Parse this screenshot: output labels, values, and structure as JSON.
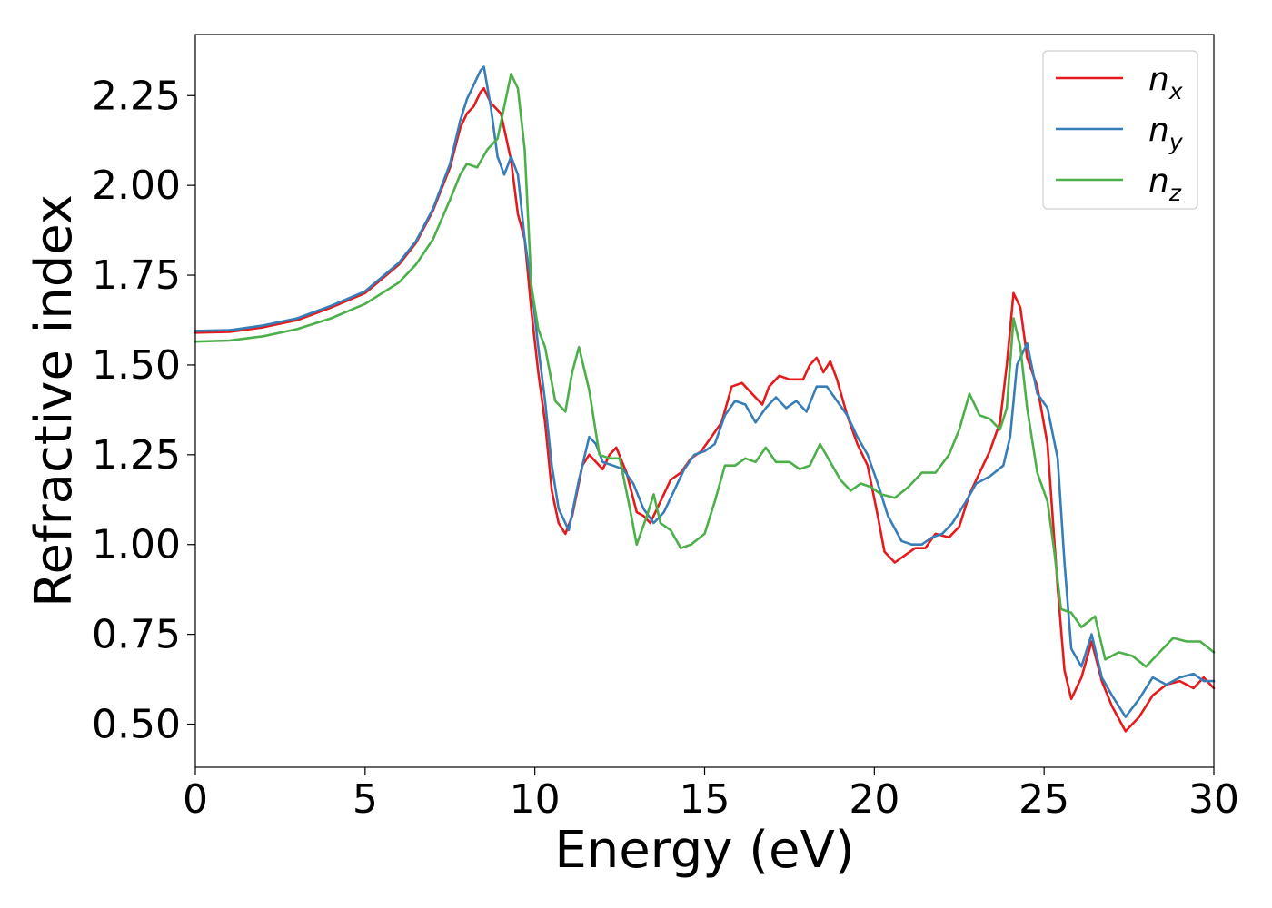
{
  "chart_data": {
    "type": "line",
    "xlabel": "Energy (eV)",
    "ylabel": "Refractive index",
    "xlim": [
      0,
      30
    ],
    "ylim": [
      0.38,
      2.42
    ],
    "xticks": [
      0,
      5,
      10,
      15,
      20,
      25,
      30
    ],
    "yticks": [
      0.5,
      0.75,
      1.0,
      1.25,
      1.5,
      1.75,
      2.0,
      2.25
    ],
    "xtick_labels": [
      "0",
      "5",
      "10",
      "15",
      "20",
      "25",
      "30"
    ],
    "ytick_labels": [
      "0.50",
      "0.75",
      "1.00",
      "1.25",
      "1.50",
      "1.75",
      "2.00",
      "2.25"
    ],
    "grid": false,
    "legend_position": "top-right",
    "series": [
      {
        "name": "n_x",
        "base": "n",
        "sub": "x",
        "color": "#e41a1c",
        "points": [
          [
            0,
            1.59
          ],
          [
            1,
            1.592
          ],
          [
            2,
            1.605
          ],
          [
            3,
            1.625
          ],
          [
            4,
            1.66
          ],
          [
            5,
            1.7
          ],
          [
            6,
            1.78
          ],
          [
            6.5,
            1.84
          ],
          [
            7,
            1.93
          ],
          [
            7.5,
            2.05
          ],
          [
            7.8,
            2.16
          ],
          [
            8.0,
            2.2
          ],
          [
            8.2,
            2.22
          ],
          [
            8.4,
            2.26
          ],
          [
            8.5,
            2.27
          ],
          [
            8.7,
            2.23
          ],
          [
            9.0,
            2.2
          ],
          [
            9.3,
            2.07
          ],
          [
            9.5,
            1.92
          ],
          [
            9.7,
            1.85
          ],
          [
            9.9,
            1.65
          ],
          [
            10.1,
            1.48
          ],
          [
            10.3,
            1.34
          ],
          [
            10.5,
            1.15
          ],
          [
            10.7,
            1.06
          ],
          [
            10.9,
            1.03
          ],
          [
            11.1,
            1.08
          ],
          [
            11.4,
            1.22
          ],
          [
            11.6,
            1.25
          ],
          [
            11.8,
            1.23
          ],
          [
            12.0,
            1.21
          ],
          [
            12.2,
            1.25
          ],
          [
            12.4,
            1.27
          ],
          [
            12.7,
            1.2
          ],
          [
            13.0,
            1.09
          ],
          [
            13.2,
            1.08
          ],
          [
            13.4,
            1.06
          ],
          [
            13.7,
            1.12
          ],
          [
            14.0,
            1.18
          ],
          [
            14.3,
            1.2
          ],
          [
            14.6,
            1.24
          ],
          [
            14.9,
            1.26
          ],
          [
            15.2,
            1.3
          ],
          [
            15.5,
            1.34
          ],
          [
            15.8,
            1.44
          ],
          [
            16.1,
            1.45
          ],
          [
            16.4,
            1.42
          ],
          [
            16.7,
            1.39
          ],
          [
            16.9,
            1.44
          ],
          [
            17.2,
            1.47
          ],
          [
            17.5,
            1.46
          ],
          [
            17.9,
            1.46
          ],
          [
            18.1,
            1.5
          ],
          [
            18.3,
            1.52
          ],
          [
            18.5,
            1.48
          ],
          [
            18.7,
            1.51
          ],
          [
            18.9,
            1.46
          ],
          [
            19.2,
            1.36
          ],
          [
            19.5,
            1.28
          ],
          [
            19.8,
            1.22
          ],
          [
            20.1,
            1.08
          ],
          [
            20.3,
            0.98
          ],
          [
            20.6,
            0.95
          ],
          [
            20.9,
            0.97
          ],
          [
            21.2,
            0.99
          ],
          [
            21.5,
            0.99
          ],
          [
            21.8,
            1.03
          ],
          [
            22.2,
            1.02
          ],
          [
            22.5,
            1.05
          ],
          [
            22.8,
            1.14
          ],
          [
            23.1,
            1.2
          ],
          [
            23.4,
            1.26
          ],
          [
            23.7,
            1.34
          ],
          [
            23.9,
            1.5
          ],
          [
            24.1,
            1.7
          ],
          [
            24.3,
            1.66
          ],
          [
            24.5,
            1.52
          ],
          [
            24.8,
            1.44
          ],
          [
            25.1,
            1.28
          ],
          [
            25.4,
            0.88
          ],
          [
            25.6,
            0.65
          ],
          [
            25.8,
            0.57
          ],
          [
            26.1,
            0.63
          ],
          [
            26.4,
            0.73
          ],
          [
            26.7,
            0.62
          ],
          [
            27.0,
            0.55
          ],
          [
            27.4,
            0.48
          ],
          [
            27.8,
            0.52
          ],
          [
            28.2,
            0.58
          ],
          [
            28.6,
            0.61
          ],
          [
            29.0,
            0.62
          ],
          [
            29.4,
            0.6
          ],
          [
            29.7,
            0.63
          ],
          [
            30,
            0.6
          ]
        ]
      },
      {
        "name": "n_y",
        "base": "n",
        "sub": "y",
        "color": "#377eb8",
        "points": [
          [
            0,
            1.595
          ],
          [
            1,
            1.597
          ],
          [
            2,
            1.61
          ],
          [
            3,
            1.63
          ],
          [
            4,
            1.665
          ],
          [
            5,
            1.705
          ],
          [
            6,
            1.785
          ],
          [
            6.5,
            1.845
          ],
          [
            7,
            1.935
          ],
          [
            7.5,
            2.06
          ],
          [
            7.8,
            2.18
          ],
          [
            8.0,
            2.24
          ],
          [
            8.2,
            2.28
          ],
          [
            8.4,
            2.32
          ],
          [
            8.5,
            2.33
          ],
          [
            8.7,
            2.22
          ],
          [
            8.9,
            2.08
          ],
          [
            9.1,
            2.03
          ],
          [
            9.3,
            2.08
          ],
          [
            9.5,
            2.03
          ],
          [
            9.7,
            1.85
          ],
          [
            9.9,
            1.72
          ],
          [
            10.1,
            1.55
          ],
          [
            10.3,
            1.4
          ],
          [
            10.5,
            1.22
          ],
          [
            10.7,
            1.1
          ],
          [
            11.0,
            1.04
          ],
          [
            11.3,
            1.18
          ],
          [
            11.6,
            1.3
          ],
          [
            11.8,
            1.28
          ],
          [
            12.0,
            1.23
          ],
          [
            12.3,
            1.22
          ],
          [
            12.6,
            1.21
          ],
          [
            12.9,
            1.17
          ],
          [
            13.2,
            1.1
          ],
          [
            13.5,
            1.06
          ],
          [
            13.8,
            1.09
          ],
          [
            14.1,
            1.15
          ],
          [
            14.4,
            1.21
          ],
          [
            14.7,
            1.25
          ],
          [
            15.0,
            1.26
          ],
          [
            15.3,
            1.28
          ],
          [
            15.6,
            1.36
          ],
          [
            15.9,
            1.4
          ],
          [
            16.2,
            1.39
          ],
          [
            16.5,
            1.34
          ],
          [
            16.8,
            1.38
          ],
          [
            17.1,
            1.41
          ],
          [
            17.4,
            1.38
          ],
          [
            17.7,
            1.4
          ],
          [
            18.0,
            1.37
          ],
          [
            18.3,
            1.44
          ],
          [
            18.6,
            1.44
          ],
          [
            18.9,
            1.4
          ],
          [
            19.2,
            1.36
          ],
          [
            19.5,
            1.3
          ],
          [
            19.8,
            1.25
          ],
          [
            20.1,
            1.17
          ],
          [
            20.4,
            1.08
          ],
          [
            20.8,
            1.01
          ],
          [
            21.1,
            1.0
          ],
          [
            21.4,
            1.0
          ],
          [
            21.7,
            1.02
          ],
          [
            22.0,
            1.03
          ],
          [
            22.3,
            1.06
          ],
          [
            22.7,
            1.12
          ],
          [
            23.0,
            1.17
          ],
          [
            23.4,
            1.19
          ],
          [
            23.8,
            1.22
          ],
          [
            24.0,
            1.3
          ],
          [
            24.2,
            1.5
          ],
          [
            24.5,
            1.56
          ],
          [
            24.8,
            1.42
          ],
          [
            25.1,
            1.38
          ],
          [
            25.4,
            1.24
          ],
          [
            25.6,
            0.95
          ],
          [
            25.8,
            0.71
          ],
          [
            26.1,
            0.66
          ],
          [
            26.4,
            0.75
          ],
          [
            26.7,
            0.63
          ],
          [
            27.0,
            0.58
          ],
          [
            27.4,
            0.52
          ],
          [
            27.8,
            0.57
          ],
          [
            28.2,
            0.63
          ],
          [
            28.6,
            0.61
          ],
          [
            29.0,
            0.63
          ],
          [
            29.4,
            0.64
          ],
          [
            29.7,
            0.62
          ],
          [
            30,
            0.62
          ]
        ]
      },
      {
        "name": "n_z",
        "base": "n",
        "sub": "z",
        "color": "#4daf4a",
        "points": [
          [
            0,
            1.565
          ],
          [
            1,
            1.568
          ],
          [
            2,
            1.58
          ],
          [
            3,
            1.6
          ],
          [
            4,
            1.63
          ],
          [
            5,
            1.67
          ],
          [
            6,
            1.73
          ],
          [
            6.5,
            1.78
          ],
          [
            7,
            1.85
          ],
          [
            7.5,
            1.96
          ],
          [
            7.8,
            2.03
          ],
          [
            8.0,
            2.06
          ],
          [
            8.3,
            2.05
          ],
          [
            8.6,
            2.1
          ],
          [
            8.9,
            2.13
          ],
          [
            9.1,
            2.22
          ],
          [
            9.3,
            2.31
          ],
          [
            9.5,
            2.27
          ],
          [
            9.7,
            2.1
          ],
          [
            9.9,
            1.72
          ],
          [
            10.1,
            1.6
          ],
          [
            10.3,
            1.55
          ],
          [
            10.6,
            1.4
          ],
          [
            10.9,
            1.37
          ],
          [
            11.1,
            1.48
          ],
          [
            11.3,
            1.55
          ],
          [
            11.6,
            1.43
          ],
          [
            11.9,
            1.25
          ],
          [
            12.2,
            1.24
          ],
          [
            12.5,
            1.24
          ],
          [
            12.8,
            1.1
          ],
          [
            13.0,
            1.0
          ],
          [
            13.3,
            1.08
          ],
          [
            13.5,
            1.14
          ],
          [
            13.7,
            1.06
          ],
          [
            14.0,
            1.04
          ],
          [
            14.3,
            0.99
          ],
          [
            14.6,
            1.0
          ],
          [
            15.0,
            1.03
          ],
          [
            15.3,
            1.12
          ],
          [
            15.6,
            1.22
          ],
          [
            15.9,
            1.22
          ],
          [
            16.2,
            1.24
          ],
          [
            16.5,
            1.23
          ],
          [
            16.8,
            1.27
          ],
          [
            17.1,
            1.23
          ],
          [
            17.5,
            1.23
          ],
          [
            17.8,
            1.21
          ],
          [
            18.1,
            1.22
          ],
          [
            18.4,
            1.28
          ],
          [
            18.7,
            1.23
          ],
          [
            19.0,
            1.18
          ],
          [
            19.3,
            1.15
          ],
          [
            19.6,
            1.17
          ],
          [
            19.9,
            1.16
          ],
          [
            20.2,
            1.14
          ],
          [
            20.6,
            1.13
          ],
          [
            21.0,
            1.16
          ],
          [
            21.4,
            1.2
          ],
          [
            21.8,
            1.2
          ],
          [
            22.2,
            1.25
          ],
          [
            22.5,
            1.32
          ],
          [
            22.8,
            1.42
          ],
          [
            23.1,
            1.36
          ],
          [
            23.4,
            1.35
          ],
          [
            23.7,
            1.32
          ],
          [
            23.9,
            1.38
          ],
          [
            24.1,
            1.63
          ],
          [
            24.3,
            1.55
          ],
          [
            24.5,
            1.38
          ],
          [
            24.8,
            1.2
          ],
          [
            25.1,
            1.12
          ],
          [
            25.3,
            0.98
          ],
          [
            25.5,
            0.82
          ],
          [
            25.8,
            0.81
          ],
          [
            26.1,
            0.77
          ],
          [
            26.5,
            0.8
          ],
          [
            26.8,
            0.68
          ],
          [
            27.2,
            0.7
          ],
          [
            27.6,
            0.69
          ],
          [
            28.0,
            0.66
          ],
          [
            28.4,
            0.7
          ],
          [
            28.8,
            0.74
          ],
          [
            29.2,
            0.73
          ],
          [
            29.6,
            0.73
          ],
          [
            30,
            0.7
          ]
        ]
      }
    ]
  }
}
